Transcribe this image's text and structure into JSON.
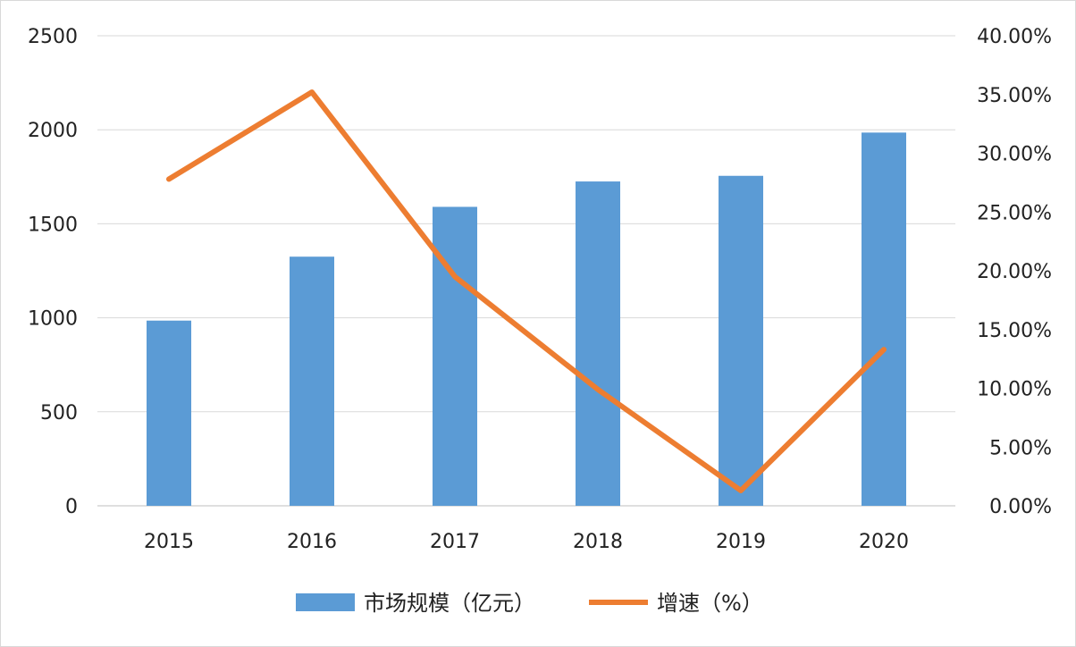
{
  "chart_data": {
    "type": "bar",
    "categories": [
      "2015",
      "2016",
      "2017",
      "2018",
      "2019",
      "2020"
    ],
    "series": [
      {
        "name": "市场规模（亿元）",
        "type": "bar",
        "axis": "left",
        "color": "#5b9bd5",
        "values": [
          985,
          1325,
          1590,
          1725,
          1755,
          1985
        ]
      },
      {
        "name": "增速（%）",
        "type": "line",
        "axis": "right",
        "color": "#ed7d31",
        "values": [
          27.8,
          35.2,
          19.5,
          9.9,
          1.3,
          13.3
        ]
      }
    ],
    "y_left": {
      "ylim": [
        0,
        2500
      ],
      "ticks": [
        "0",
        "500",
        "1000",
        "1500",
        "2000",
        "2500"
      ]
    },
    "y_right": {
      "ylim": [
        0,
        40
      ],
      "ticks": [
        "0.00%",
        "5.00%",
        "10.00%",
        "15.00%",
        "20.00%",
        "25.00%",
        "30.00%",
        "35.00%",
        "40.00%"
      ]
    },
    "grid": true,
    "legend": "bottom"
  }
}
